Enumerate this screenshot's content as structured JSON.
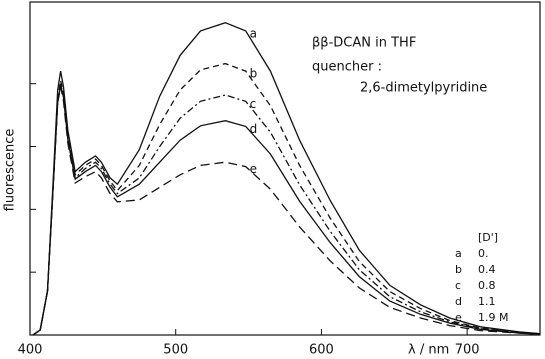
{
  "chart_data": {
    "type": "line",
    "annotations": [
      "ββ-DCAN in THF",
      "quencher :",
      "2,6-dimetylpyridine"
    ],
    "x_label": "λ / nm",
    "y_label": "fluorescence",
    "x": [
      402,
      407,
      412,
      416,
      419,
      421,
      423,
      426,
      431,
      438,
      445,
      449,
      455,
      460,
      475,
      489,
      503,
      517,
      534,
      548,
      565,
      585,
      606,
      626,
      647,
      668,
      688,
      709,
      736,
      750
    ],
    "series": [
      {
        "name": "a",
        "color": "#111111",
        "dash": "solid",
        "values": [
          0,
          0.08,
          0.7,
          2.5,
          3.9,
          4.2,
          3.95,
          3.25,
          2.6,
          2.75,
          2.85,
          2.75,
          2.5,
          2.4,
          2.95,
          3.8,
          4.45,
          4.84,
          4.97,
          4.84,
          4.2,
          3.1,
          2.14,
          1.35,
          0.79,
          0.48,
          0.27,
          0.13,
          0.05,
          0.02
        ]
      },
      {
        "name": "b",
        "color": "#111111",
        "dash": "dashed",
        "values": [
          0,
          0.08,
          0.7,
          2.4,
          3.75,
          4.05,
          3.85,
          3.2,
          2.55,
          2.7,
          2.8,
          2.7,
          2.45,
          2.3,
          2.7,
          3.35,
          3.9,
          4.22,
          4.32,
          4.2,
          3.65,
          2.7,
          1.86,
          1.17,
          0.69,
          0.42,
          0.23,
          0.11,
          0.04,
          0.02
        ]
      },
      {
        "name": "c",
        "color": "#111111",
        "dash": "dashdot",
        "values": [
          0,
          0.08,
          0.7,
          2.4,
          3.7,
          4.0,
          3.8,
          3.15,
          2.5,
          2.65,
          2.75,
          2.65,
          2.4,
          2.25,
          2.5,
          3.0,
          3.45,
          3.72,
          3.82,
          3.72,
          3.23,
          2.39,
          1.65,
          1.04,
          0.61,
          0.37,
          0.21,
          0.1,
          0.04,
          0.01
        ]
      },
      {
        "name": "d",
        "color": "#111111",
        "dash": "solid",
        "values": [
          0,
          0.08,
          0.7,
          2.4,
          3.7,
          3.98,
          3.78,
          3.1,
          2.48,
          2.6,
          2.7,
          2.6,
          2.35,
          2.2,
          2.4,
          2.75,
          3.1,
          3.33,
          3.41,
          3.32,
          2.88,
          2.13,
          1.47,
          0.93,
          0.54,
          0.33,
          0.19,
          0.09,
          0.03,
          0.01
        ]
      },
      {
        "name": "e",
        "color": "#111111",
        "dash": "longdash",
        "values": [
          0,
          0.08,
          0.7,
          2.4,
          3.7,
          3.95,
          3.72,
          3.05,
          2.42,
          2.52,
          2.6,
          2.5,
          2.25,
          2.12,
          2.15,
          2.35,
          2.55,
          2.7,
          2.75,
          2.68,
          2.32,
          1.72,
          1.18,
          0.75,
          0.44,
          0.27,
          0.15,
          0.07,
          0.03,
          0.01
        ]
      }
    ],
    "xlim": [
      400,
      750
    ],
    "xticks": [
      400,
      500,
      600,
      700
    ],
    "ylim": [
      0,
      5.3
    ],
    "yticks": [
      1,
      2,
      3,
      4
    ],
    "concentration_table": {
      "header": "[D']",
      "rows": [
        [
          "a",
          "0."
        ],
        [
          "b",
          "0.4"
        ],
        [
          "c",
          "0.8"
        ],
        [
          "d",
          "1.1"
        ],
        [
          "e",
          "1.9 M"
        ]
      ]
    }
  }
}
